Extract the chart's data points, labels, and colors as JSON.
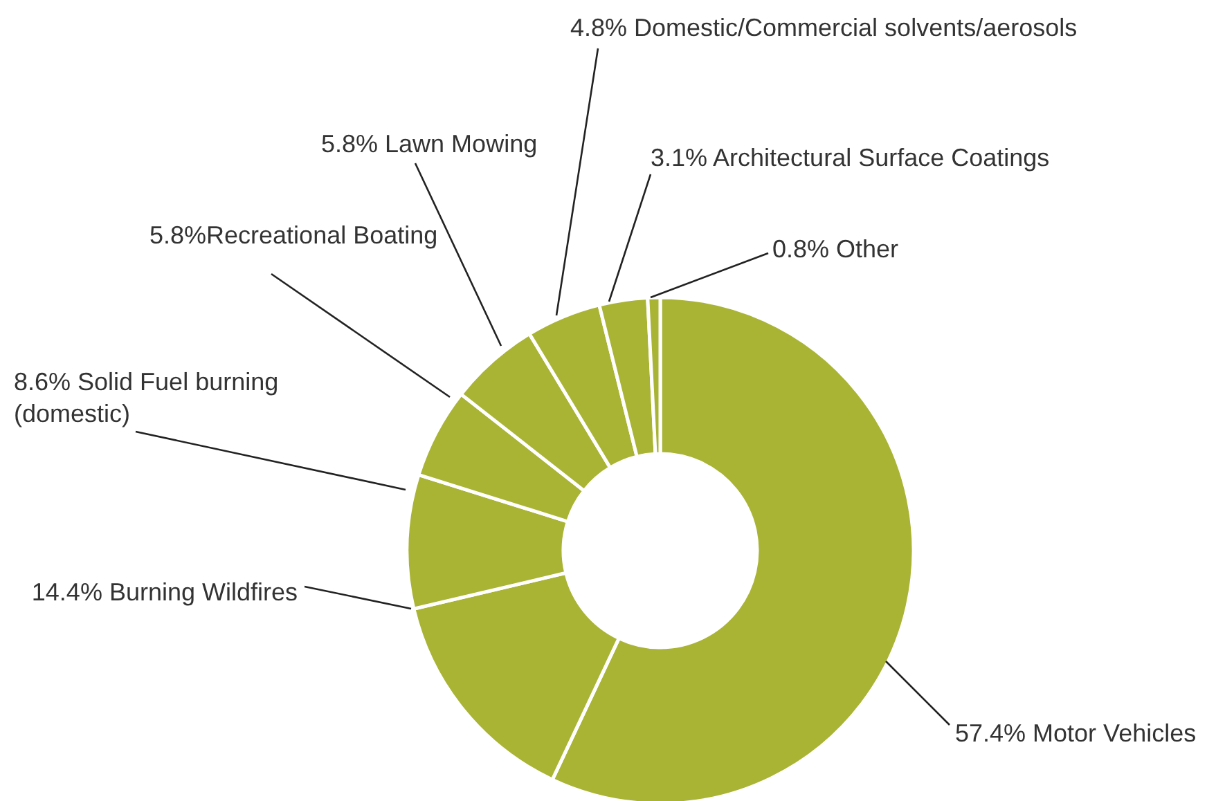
{
  "chart_data": {
    "type": "donut",
    "categories": [
      "57.4% Motor Vehicles",
      "14.4% Burning Wildfires",
      "8.6% Solid Fuel burning (domestic)",
      "5.8%Recreational Boating",
      "5.8% Lawn Mowing",
      "4.8% Domestic/Commercial solvents/aerosols",
      "3.1% Architectural Surface Coatings",
      "0.8% Other"
    ],
    "values": [
      57.4,
      14.4,
      8.6,
      5.8,
      5.8,
      4.8,
      3.1,
      0.8
    ],
    "colors": [
      "#a9b434",
      "#a9b434",
      "#a9b434",
      "#a9b434",
      "#a9b434",
      "#a9b434",
      "#a9b434",
      "#a9b434"
    ]
  }
}
